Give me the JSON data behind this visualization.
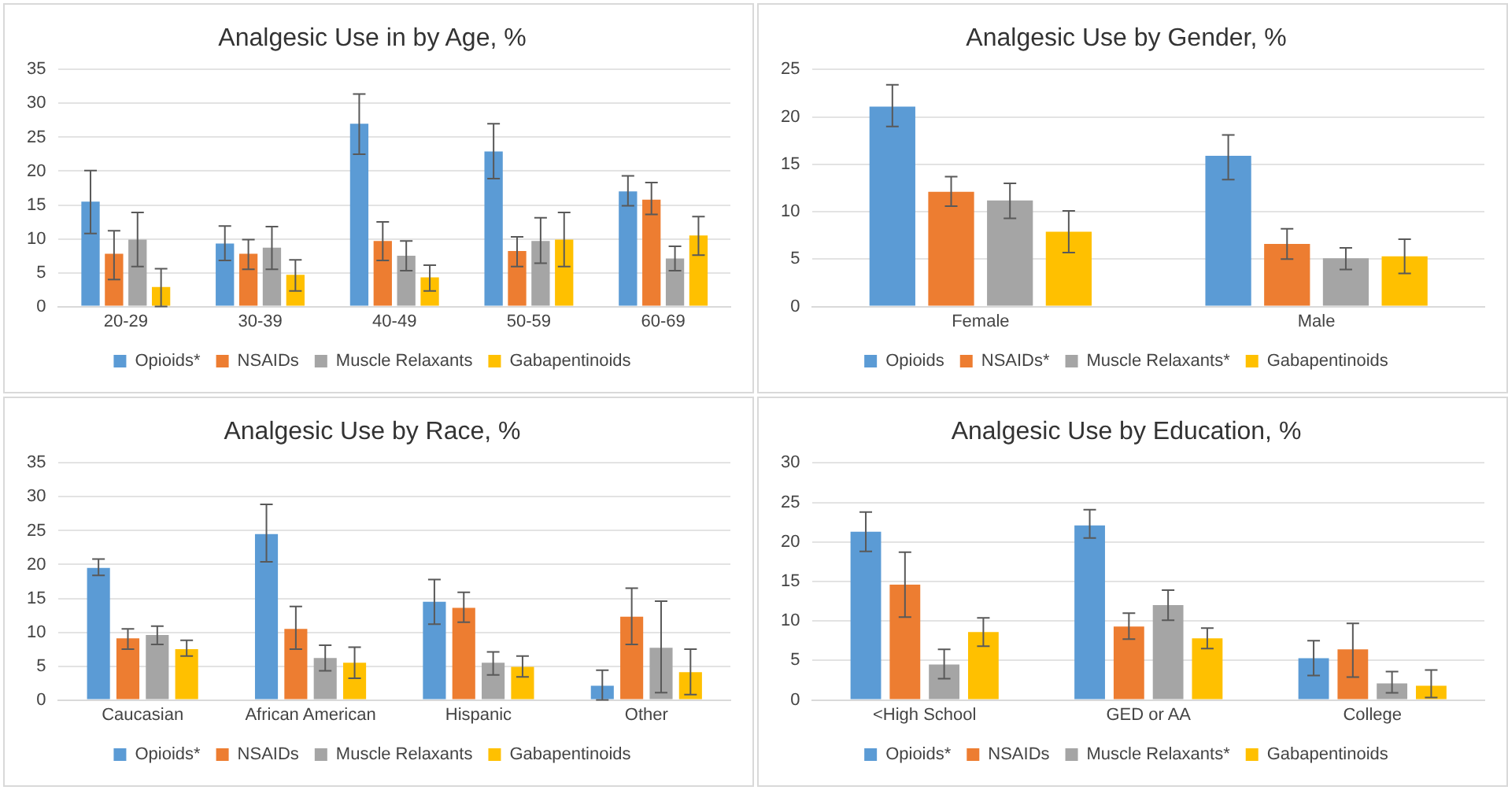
{
  "chart_data": [
    {
      "type": "bar",
      "title": "Analgesic Use in by Age, %",
      "categories": [
        "20-29",
        "30-39",
        "40-49",
        "50-59",
        "60-69"
      ],
      "ylim": [
        0,
        35
      ],
      "yticks": [
        0,
        5,
        10,
        15,
        20,
        25,
        30,
        35
      ],
      "grid": "y",
      "legend": "bottom",
      "series": [
        {
          "name": "Opioids*",
          "color": "#5b9bd5",
          "values": [
            15.5,
            9.3,
            27.0,
            22.9,
            17.0
          ],
          "errors": [
            [
              10.8,
              20.1
            ],
            [
              6.8,
              11.9
            ],
            [
              22.5,
              31.4
            ],
            [
              18.9,
              27.0
            ],
            [
              14.9,
              19.3
            ]
          ]
        },
        {
          "name": "NSAIDs",
          "color": "#ed7d31",
          "values": [
            7.8,
            7.8,
            9.7,
            8.2,
            15.8
          ],
          "errors": [
            [
              4.0,
              11.2
            ],
            [
              5.5,
              9.9
            ],
            [
              6.8,
              12.5
            ],
            [
              5.9,
              10.3
            ],
            [
              13.6,
              18.3
            ]
          ]
        },
        {
          "name": "Muscle Relaxants",
          "color": "#a5a5a5",
          "values": [
            9.9,
            8.7,
            7.5,
            9.7,
            7.1
          ],
          "errors": [
            [
              5.9,
              13.9
            ],
            [
              5.5,
              11.8
            ],
            [
              5.3,
              9.7
            ],
            [
              6.4,
              13.1
            ],
            [
              5.3,
              8.9
            ]
          ]
        },
        {
          "name": "Gabapentinoids",
          "color": "#ffc000",
          "values": [
            2.9,
            4.7,
            4.3,
            9.9,
            10.5
          ],
          "errors": [
            [
              0,
              5.6
            ],
            [
              2.3,
              6.9
            ],
            [
              2.3,
              6.1
            ],
            [
              5.9,
              13.9
            ],
            [
              7.6,
              13.3
            ]
          ]
        }
      ]
    },
    {
      "type": "bar",
      "title": "Analgesic Use by Gender, %",
      "categories": [
        "Female",
        "Male"
      ],
      "ylim": [
        0,
        25
      ],
      "yticks": [
        0,
        5,
        10,
        15,
        20,
        25
      ],
      "grid": "y",
      "legend": "bottom",
      "series": [
        {
          "name": "Opioids",
          "color": "#5b9bd5",
          "values": [
            21.1,
            15.9
          ],
          "errors": [
            [
              19.0,
              23.4
            ],
            [
              13.4,
              18.1
            ]
          ]
        },
        {
          "name": "NSAIDs*",
          "color": "#ed7d31",
          "values": [
            12.1,
            6.6
          ],
          "errors": [
            [
              10.6,
              13.7
            ],
            [
              5.0,
              8.2
            ]
          ]
        },
        {
          "name": "Muscle Relaxants*",
          "color": "#a5a5a5",
          "values": [
            11.2,
            5.1
          ],
          "errors": [
            [
              9.3,
              13.0
            ],
            [
              3.9,
              6.2
            ]
          ]
        },
        {
          "name": "Gabapentinoids",
          "color": "#ffc000",
          "values": [
            7.9,
            5.3
          ],
          "errors": [
            [
              5.7,
              10.1
            ],
            [
              3.5,
              7.1
            ]
          ]
        }
      ]
    },
    {
      "type": "bar",
      "title": "Analgesic Use by Race, %",
      "categories": [
        "Caucasian",
        "African American",
        "Hispanic",
        "Other"
      ],
      "ylim": [
        0,
        35
      ],
      "yticks": [
        0,
        5,
        10,
        15,
        20,
        25,
        30,
        35
      ],
      "grid": "y",
      "legend": "bottom",
      "series": [
        {
          "name": "Opioids*",
          "color": "#5b9bd5",
          "values": [
            19.5,
            24.5,
            14.5,
            2.1
          ],
          "errors": [
            [
              18.4,
              20.8
            ],
            [
              20.4,
              28.9
            ],
            [
              11.2,
              17.8
            ],
            [
              0,
              4.4
            ]
          ]
        },
        {
          "name": "NSAIDs",
          "color": "#ed7d31",
          "values": [
            9.1,
            10.5,
            13.6,
            12.3
          ],
          "errors": [
            [
              7.5,
              10.5
            ],
            [
              7.5,
              13.8
            ],
            [
              11.5,
              15.9
            ],
            [
              8.2,
              16.5
            ]
          ]
        },
        {
          "name": "Muscle Relaxants",
          "color": "#a5a5a5",
          "values": [
            9.6,
            6.2,
            5.5,
            7.7
          ],
          "errors": [
            [
              8.2,
              10.9
            ],
            [
              4.3,
              8.1
            ],
            [
              3.7,
              7.1
            ],
            [
              1.1,
              14.6
            ]
          ]
        },
        {
          "name": "Gabapentinoids",
          "color": "#ffc000",
          "values": [
            7.5,
            5.5,
            4.9,
            4.1
          ],
          "errors": [
            [
              6.5,
              8.8
            ],
            [
              3.2,
              7.8
            ],
            [
              3.4,
              6.5
            ],
            [
              0.8,
              7.5
            ]
          ]
        }
      ]
    },
    {
      "type": "bar",
      "title": "Analgesic Use by Education, %",
      "categories": [
        "<High School",
        "GED or AA",
        "College"
      ],
      "ylim": [
        0,
        30
      ],
      "yticks": [
        0,
        5,
        10,
        15,
        20,
        25,
        30
      ],
      "grid": "y",
      "legend": "bottom",
      "series": [
        {
          "name": "Opioids*",
          "color": "#5b9bd5",
          "values": [
            21.3,
            22.1,
            5.3
          ],
          "errors": [
            [
              18.8,
              23.8
            ],
            [
              20.5,
              24.1
            ],
            [
              3.1,
              7.5
            ]
          ]
        },
        {
          "name": "NSAIDs",
          "color": "#ed7d31",
          "values": [
            14.6,
            9.3,
            6.4
          ],
          "errors": [
            [
              10.5,
              18.7
            ],
            [
              7.7,
              11.0
            ],
            [
              2.9,
              9.7
            ]
          ]
        },
        {
          "name": "Muscle Relaxants*",
          "color": "#a5a5a5",
          "values": [
            4.5,
            12.0,
            2.1
          ],
          "errors": [
            [
              2.7,
              6.4
            ],
            [
              10.1,
              13.9
            ],
            [
              0.9,
              3.6
            ]
          ]
        },
        {
          "name": "Gabapentinoids",
          "color": "#ffc000",
          "values": [
            8.6,
            7.8,
            1.8
          ],
          "errors": [
            [
              6.8,
              10.4
            ],
            [
              6.5,
              9.1
            ],
            [
              0.3,
              3.8
            ]
          ]
        }
      ]
    }
  ]
}
